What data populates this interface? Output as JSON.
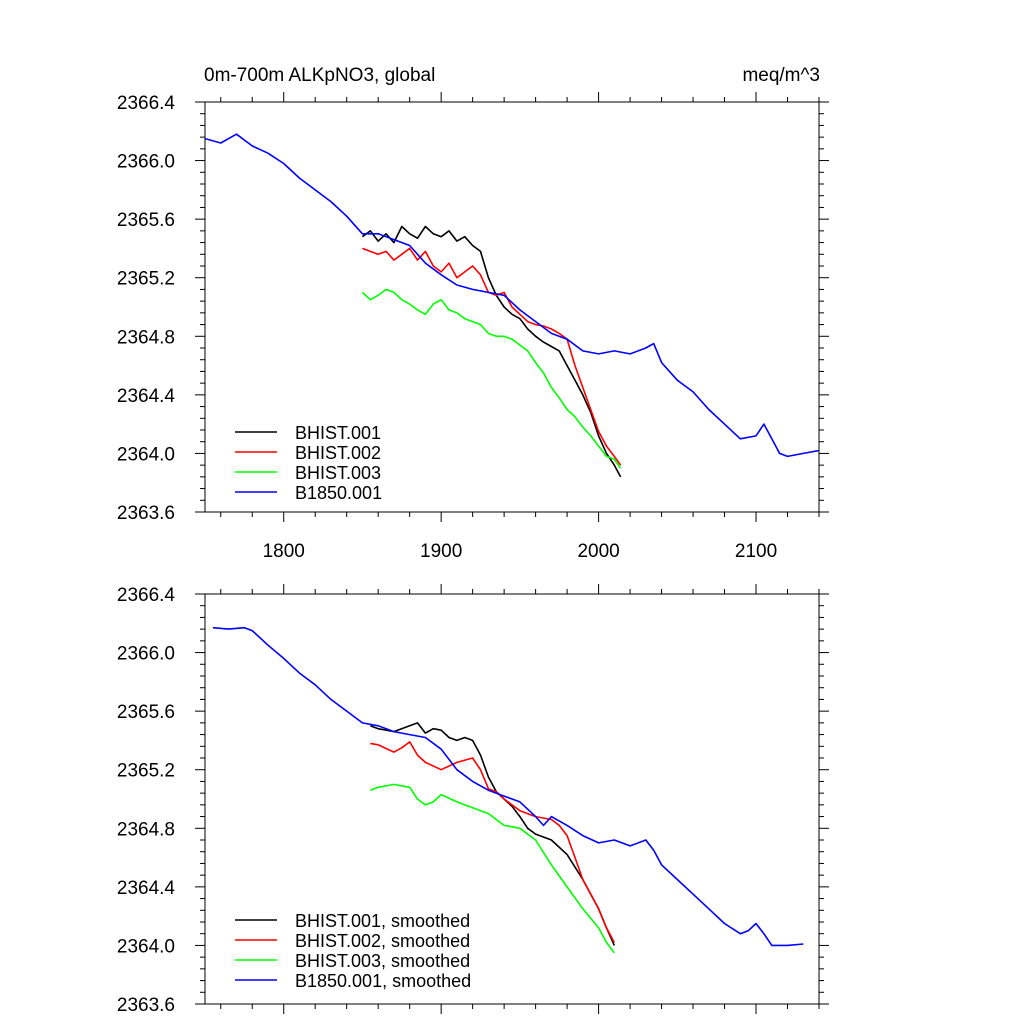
{
  "chart_data": [
    {
      "type": "line",
      "title_left": "0m-700m ALKpNO3, global",
      "title_right": "meq/m^3",
      "xlim": [
        1750,
        2140
      ],
      "ylim": [
        2363.6,
        2366.4
      ],
      "xticks": [
        1800,
        1900,
        2000,
        2100
      ],
      "xticklabels": [
        "1800",
        "1900",
        "2000",
        "2100"
      ],
      "yticks": [
        2363.6,
        2364.0,
        2364.4,
        2364.8,
        2365.2,
        2365.6,
        2366.0,
        2366.4
      ],
      "yticklabels": [
        "2363.6",
        "2364.0",
        "2364.4",
        "2364.8",
        "2365.2",
        "2365.6",
        "2366.0",
        "2366.4"
      ],
      "legend_position": "lower-left",
      "series": [
        {
          "name": "BHIST.001",
          "color": "#000000",
          "x": [
            1850,
            1855,
            1860,
            1865,
            1870,
            1875,
            1880,
            1885,
            1890,
            1895,
            1900,
            1905,
            1910,
            1915,
            1920,
            1925,
            1930,
            1935,
            1940,
            1945,
            1950,
            1955,
            1960,
            1965,
            1970,
            1975,
            1980,
            1985,
            1990,
            1995,
            2000,
            2005,
            2010,
            2014
          ],
          "y": [
            2365.48,
            2365.52,
            2365.45,
            2365.5,
            2365.44,
            2365.55,
            2365.5,
            2365.47,
            2365.55,
            2365.5,
            2365.48,
            2365.52,
            2365.45,
            2365.48,
            2365.42,
            2365.38,
            2365.2,
            2365.08,
            2365.0,
            2364.95,
            2364.92,
            2364.85,
            2364.8,
            2364.76,
            2364.73,
            2364.7,
            2364.6,
            2364.5,
            2364.4,
            2364.28,
            2364.12,
            2364.0,
            2363.92,
            2363.84
          ]
        },
        {
          "name": "BHIST.002",
          "color": "#ff0000",
          "x": [
            1850,
            1855,
            1860,
            1865,
            1870,
            1875,
            1880,
            1885,
            1890,
            1895,
            1900,
            1905,
            1910,
            1915,
            1920,
            1925,
            1930,
            1935,
            1940,
            1945,
            1950,
            1955,
            1960,
            1965,
            1970,
            1975,
            1980,
            1985,
            1990,
            1995,
            2000,
            2005,
            2010,
            2014
          ],
          "y": [
            2365.4,
            2365.38,
            2365.36,
            2365.38,
            2365.32,
            2365.36,
            2365.4,
            2365.32,
            2365.38,
            2365.28,
            2365.24,
            2365.3,
            2365.2,
            2365.24,
            2365.28,
            2365.22,
            2365.1,
            2365.08,
            2365.1,
            2365.0,
            2364.95,
            2364.9,
            2364.88,
            2364.87,
            2364.85,
            2364.82,
            2364.78,
            2364.6,
            2364.45,
            2364.3,
            2364.15,
            2364.05,
            2363.98,
            2363.92
          ]
        },
        {
          "name": "BHIST.003",
          "color": "#00ff00",
          "x": [
            1850,
            1855,
            1860,
            1865,
            1870,
            1875,
            1880,
            1885,
            1890,
            1895,
            1900,
            1905,
            1910,
            1915,
            1920,
            1925,
            1930,
            1935,
            1940,
            1945,
            1950,
            1955,
            1960,
            1965,
            1970,
            1975,
            1980,
            1985,
            1990,
            1995,
            2000,
            2005,
            2010,
            2014
          ],
          "y": [
            2365.1,
            2365.05,
            2365.08,
            2365.12,
            2365.1,
            2365.05,
            2365.02,
            2364.98,
            2364.95,
            2365.02,
            2365.05,
            2364.98,
            2364.96,
            2364.92,
            2364.9,
            2364.88,
            2364.82,
            2364.8,
            2364.8,
            2364.78,
            2364.74,
            2364.7,
            2364.62,
            2364.55,
            2364.45,
            2364.38,
            2364.3,
            2364.25,
            2364.18,
            2364.12,
            2364.05,
            2363.98,
            2363.96,
            2363.9
          ]
        },
        {
          "name": "B1850.001",
          "color": "#0000ff",
          "x": [
            1750,
            1760,
            1770,
            1780,
            1790,
            1800,
            1810,
            1820,
            1830,
            1840,
            1850,
            1860,
            1870,
            1880,
            1890,
            1900,
            1910,
            1920,
            1930,
            1940,
            1950,
            1960,
            1970,
            1980,
            1990,
            2000,
            2010,
            2020,
            2030,
            2035,
            2040,
            2050,
            2060,
            2070,
            2080,
            2090,
            2100,
            2105,
            2110,
            2115,
            2120,
            2130,
            2140
          ],
          "y": [
            2366.15,
            2366.12,
            2366.18,
            2366.1,
            2366.05,
            2365.98,
            2365.88,
            2365.8,
            2365.72,
            2365.62,
            2365.5,
            2365.5,
            2365.46,
            2365.42,
            2365.3,
            2365.22,
            2365.15,
            2365.12,
            2365.1,
            2365.08,
            2364.98,
            2364.9,
            2364.82,
            2364.78,
            2364.7,
            2364.68,
            2364.7,
            2364.68,
            2364.72,
            2364.75,
            2364.62,
            2364.5,
            2364.42,
            2364.3,
            2364.2,
            2364.1,
            2364.12,
            2364.2,
            2364.1,
            2364.0,
            2363.98,
            2364.0,
            2364.02
          ]
        }
      ]
    },
    {
      "type": "line",
      "xlim": [
        1750,
        2140
      ],
      "ylim": [
        2363.6,
        2366.4
      ],
      "xticks": [
        1800,
        1900,
        2000,
        2100
      ],
      "yticks": [
        2363.6,
        2364.0,
        2364.4,
        2364.8,
        2365.2,
        2365.6,
        2366.0,
        2366.4
      ],
      "yticklabels": [
        "2363.6",
        "2364.0",
        "2364.4",
        "2364.8",
        "2365.2",
        "2365.6",
        "2366.0",
        "2366.4"
      ],
      "legend_position": "lower-left",
      "series": [
        {
          "name": "BHIST.001, smoothed",
          "color": "#000000",
          "x": [
            1855,
            1860,
            1870,
            1880,
            1885,
            1890,
            1895,
            1900,
            1905,
            1910,
            1915,
            1920,
            1925,
            1930,
            1935,
            1940,
            1945,
            1950,
            1955,
            1960,
            1970,
            1980,
            1990,
            2000,
            2005,
            2010
          ],
          "y": [
            2365.5,
            2365.48,
            2365.46,
            2365.5,
            2365.52,
            2365.45,
            2365.48,
            2365.47,
            2365.42,
            2365.4,
            2365.42,
            2365.4,
            2365.3,
            2365.15,
            2365.05,
            2365.0,
            2364.95,
            2364.88,
            2364.8,
            2364.76,
            2364.72,
            2364.62,
            2364.45,
            2364.25,
            2364.12,
            2364.0
          ]
        },
        {
          "name": "BHIST.002, smoothed",
          "color": "#ff0000",
          "x": [
            1855,
            1860,
            1870,
            1875,
            1880,
            1885,
            1890,
            1900,
            1910,
            1920,
            1925,
            1930,
            1935,
            1940,
            1950,
            1960,
            1970,
            1975,
            1980,
            1985,
            1990,
            2000,
            2005,
            2010
          ],
          "y": [
            2365.38,
            2365.37,
            2365.32,
            2365.35,
            2365.39,
            2365.3,
            2365.25,
            2365.2,
            2365.25,
            2365.28,
            2365.2,
            2365.07,
            2365.05,
            2365.0,
            2364.92,
            2364.88,
            2364.86,
            2364.82,
            2364.75,
            2364.6,
            2364.45,
            2364.25,
            2364.12,
            2364.02
          ]
        },
        {
          "name": "BHIST.003, smoothed",
          "color": "#00ff00",
          "x": [
            1855,
            1860,
            1870,
            1880,
            1885,
            1890,
            1895,
            1900,
            1910,
            1920,
            1930,
            1940,
            1950,
            1960,
            1970,
            1980,
            1990,
            2000,
            2005,
            2010
          ],
          "y": [
            2365.06,
            2365.08,
            2365.1,
            2365.08,
            2365.0,
            2364.96,
            2364.98,
            2365.03,
            2364.98,
            2364.94,
            2364.9,
            2364.82,
            2364.8,
            2364.72,
            2364.55,
            2364.4,
            2364.25,
            2364.12,
            2364.02,
            2363.95
          ]
        },
        {
          "name": "B1850.001, smoothed",
          "color": "#0000ff",
          "x": [
            1755,
            1765,
            1775,
            1780,
            1790,
            1800,
            1810,
            1820,
            1830,
            1840,
            1850,
            1860,
            1870,
            1880,
            1890,
            1900,
            1910,
            1920,
            1930,
            1940,
            1950,
            1960,
            1965,
            1970,
            1980,
            1990,
            2000,
            2010,
            2020,
            2030,
            2035,
            2040,
            2050,
            2060,
            2070,
            2080,
            2090,
            2095,
            2100,
            2105,
            2110,
            2120,
            2130
          ],
          "y": [
            2366.17,
            2366.16,
            2366.17,
            2366.15,
            2366.05,
            2365.96,
            2365.86,
            2365.78,
            2365.68,
            2365.6,
            2365.52,
            2365.5,
            2365.46,
            2365.44,
            2365.42,
            2365.34,
            2365.2,
            2365.12,
            2365.06,
            2365.02,
            2364.98,
            2364.88,
            2364.82,
            2364.88,
            2364.82,
            2364.75,
            2364.7,
            2364.72,
            2364.68,
            2364.72,
            2364.65,
            2364.55,
            2364.45,
            2364.35,
            2364.25,
            2364.15,
            2364.08,
            2364.1,
            2364.15,
            2364.08,
            2364.0,
            2364.0,
            2364.01
          ]
        }
      ]
    }
  ]
}
